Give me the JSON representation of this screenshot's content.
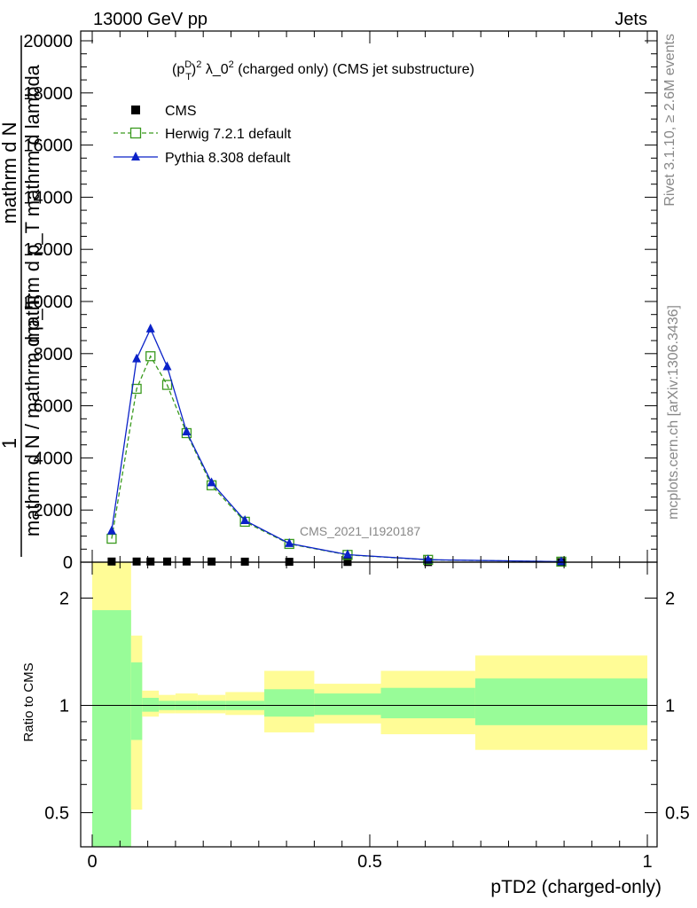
{
  "header": {
    "left": "13000 GeV pp",
    "right": "Jets"
  },
  "side_labels": {
    "rivet": "Rivet 3.1.10, ≥ 2.6M events",
    "mcplots": "mcplots.cern.ch [arXiv:1306.3436]"
  },
  "chart_data": [
    {
      "type": "line",
      "title": "(pTD)2 λ_02 (charged only) (CMS jet substructure)",
      "title_parts": {
        "a": "(p",
        "sup1": "D",
        "sub1": "T",
        "b": ")",
        "sup2": "2",
        "c": " λ_0",
        "sup3": "2",
        "d": " (charged only) (CMS jet substructure)"
      },
      "ylabel_lines": [
        "1",
        "mathrm d N / mathrm d p_T",
        "mathrm d N",
        "mathrm d p_T mathrm d lambda"
      ],
      "watermark": "CMS_2021_I1920187",
      "xlim": [
        0,
        1
      ],
      "ylim": [
        0,
        20000
      ],
      "yticks": [
        0,
        2000,
        4000,
        6000,
        8000,
        10000,
        12000,
        14000,
        16000,
        18000,
        20000
      ],
      "ytick_labels": [
        "0",
        "2000",
        "4000",
        "6000",
        "8000",
        "10000",
        "12000",
        "14000",
        "16000",
        "18000",
        "20000"
      ],
      "legend_placement": "top-left",
      "series": [
        {
          "name": "CMS",
          "color": "#000000",
          "marker": "square-filled",
          "x": [
            0.035,
            0.08,
            0.105,
            0.135,
            0.17,
            0.215,
            0.275,
            0.355,
            0.46,
            0.605,
            0.845
          ],
          "y": [
            25,
            25,
            25,
            25,
            25,
            25,
            20,
            15,
            10,
            5,
            2
          ]
        },
        {
          "name": "Herwig 7.2.1 default",
          "color": "#3a9a1e",
          "marker": "square-open",
          "line": "dashed",
          "x": [
            0.035,
            0.08,
            0.105,
            0.135,
            0.17,
            0.215,
            0.275,
            0.355,
            0.46,
            0.605,
            0.845
          ],
          "y": [
            900,
            6650,
            7900,
            6800,
            4950,
            2950,
            1550,
            700,
            280,
            90,
            20
          ]
        },
        {
          "name": "Pythia 8.308 default",
          "color": "#0b22c8",
          "marker": "triangle-filled",
          "line": "solid",
          "x": [
            0.035,
            0.08,
            0.105,
            0.135,
            0.17,
            0.215,
            0.275,
            0.355,
            0.46,
            0.605,
            0.845
          ],
          "y": [
            1200,
            7800,
            8950,
            7500,
            5000,
            3050,
            1600,
            720,
            290,
            95,
            20
          ]
        }
      ]
    },
    {
      "type": "area",
      "ylabel": "Ratio to CMS",
      "xlabel": "pTD2 (charged-only)",
      "xlim": [
        0,
        1
      ],
      "ylim": [
        0.4,
        2.45
      ],
      "log_scale_y": true,
      "yticks": [
        0.5,
        1,
        2
      ],
      "ytick_labels": [
        "0.5",
        "1",
        "2"
      ],
      "xticks": [
        0,
        0.5,
        1
      ],
      "xtick_labels": [
        "0",
        "0.5",
        "1"
      ],
      "reference_line": 1,
      "bands": {
        "yellow_color": "#fffc96",
        "green_color": "#98fc98",
        "bins": [
          {
            "x0": 0.0,
            "x1": 0.07,
            "yellow": [
              0.3,
              2.6
            ],
            "green": [
              0.3,
              1.85
            ]
          },
          {
            "x0": 0.07,
            "x1": 0.09,
            "yellow": [
              0.51,
              1.57
            ],
            "green": [
              0.8,
              1.32
            ]
          },
          {
            "x0": 0.09,
            "x1": 0.12,
            "yellow": [
              0.93,
              1.1
            ],
            "green": [
              0.96,
              1.05
            ]
          },
          {
            "x0": 0.12,
            "x1": 0.15,
            "yellow": [
              0.95,
              1.07
            ],
            "green": [
              0.97,
              1.03
            ]
          },
          {
            "x0": 0.15,
            "x1": 0.19,
            "yellow": [
              0.95,
              1.08
            ],
            "green": [
              0.97,
              1.03
            ]
          },
          {
            "x0": 0.19,
            "x1": 0.24,
            "yellow": [
              0.95,
              1.07
            ],
            "green": [
              0.97,
              1.03
            ]
          },
          {
            "x0": 0.24,
            "x1": 0.31,
            "yellow": [
              0.94,
              1.09
            ],
            "green": [
              0.97,
              1.03
            ]
          },
          {
            "x0": 0.31,
            "x1": 0.4,
            "yellow": [
              0.84,
              1.25
            ],
            "green": [
              0.93,
              1.11
            ]
          },
          {
            "x0": 0.4,
            "x1": 0.52,
            "yellow": [
              0.89,
              1.15
            ],
            "green": [
              0.94,
              1.08
            ]
          },
          {
            "x0": 0.52,
            "x1": 0.69,
            "yellow": [
              0.83,
              1.25
            ],
            "green": [
              0.92,
              1.12
            ]
          },
          {
            "x0": 0.69,
            "x1": 1.0,
            "yellow": [
              0.75,
              1.38
            ],
            "green": [
              0.88,
              1.19
            ]
          }
        ]
      }
    }
  ]
}
